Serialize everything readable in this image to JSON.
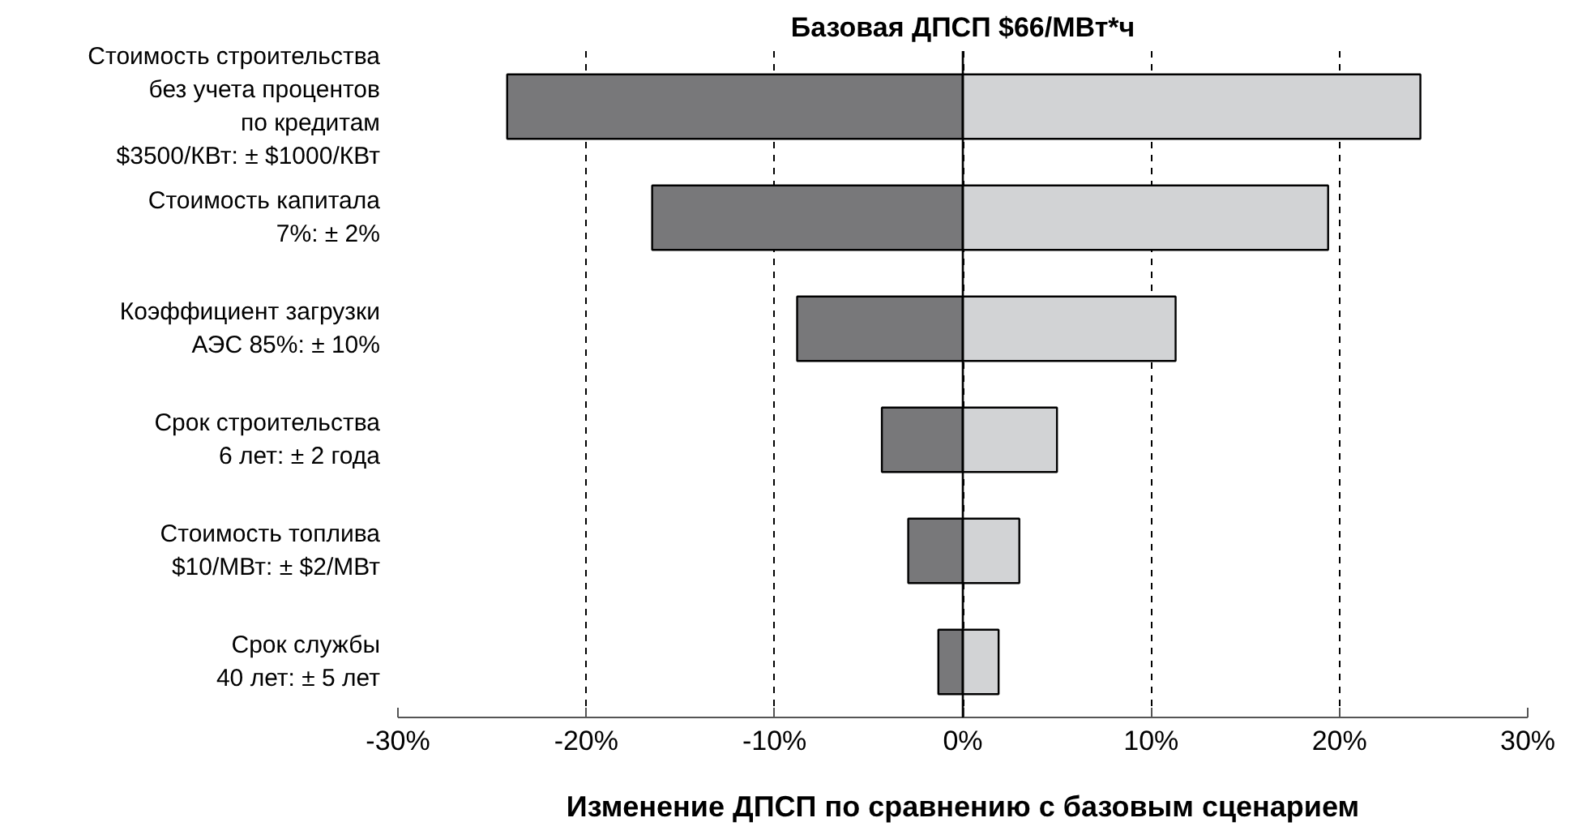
{
  "chart_data": {
    "type": "bar",
    "orientation": "horizontal",
    "title": "Базовая ДПСП $66/МВт*ч",
    "xlabel": "Изменение ДПСП по сравнению с базовым сценарием",
    "categories": [
      "Стоимость строительства\nбез учета процентов\nпо кредитам\n$3500/КВт: ± $1000/КВт",
      "Стоимость капитала\n7%: ± 2%",
      "Коэффициент загрузки\nАЭС 85%: ± 10%",
      "Срок строительства\n6 лет: ± 2 года",
      "Стоимость топлива\n$10/МВт: ± $2/МВт",
      "Срок службы\n40 лет: ± 5 лет"
    ],
    "series": [
      {
        "color": "#78787a",
        "values": [
          -24.2,
          -16.5,
          -8.8,
          -4.3,
          -2.9,
          -1.3
        ]
      },
      {
        "color": "#d2d3d5",
        "values": [
          24.3,
          19.4,
          11.3,
          5.0,
          3.0,
          1.9
        ]
      }
    ],
    "xlim": [
      -30,
      30
    ],
    "xticks": [
      {
        "value": -30,
        "label": "-30%"
      },
      {
        "value": -20,
        "label": "-20%"
      },
      {
        "value": -10,
        "label": "-10%"
      },
      {
        "value": 0,
        "label": "0%"
      },
      {
        "value": 10,
        "label": "10%"
      },
      {
        "value": 20,
        "label": "20%"
      },
      {
        "value": 30,
        "label": "30%"
      }
    ],
    "grid": "x",
    "line_style": "dashed",
    "ref_lines": [
      {
        "axis": "x",
        "value": 0,
        "color": "#000000",
        "line_style": "solid"
      }
    ],
    "stacked": true
  }
}
